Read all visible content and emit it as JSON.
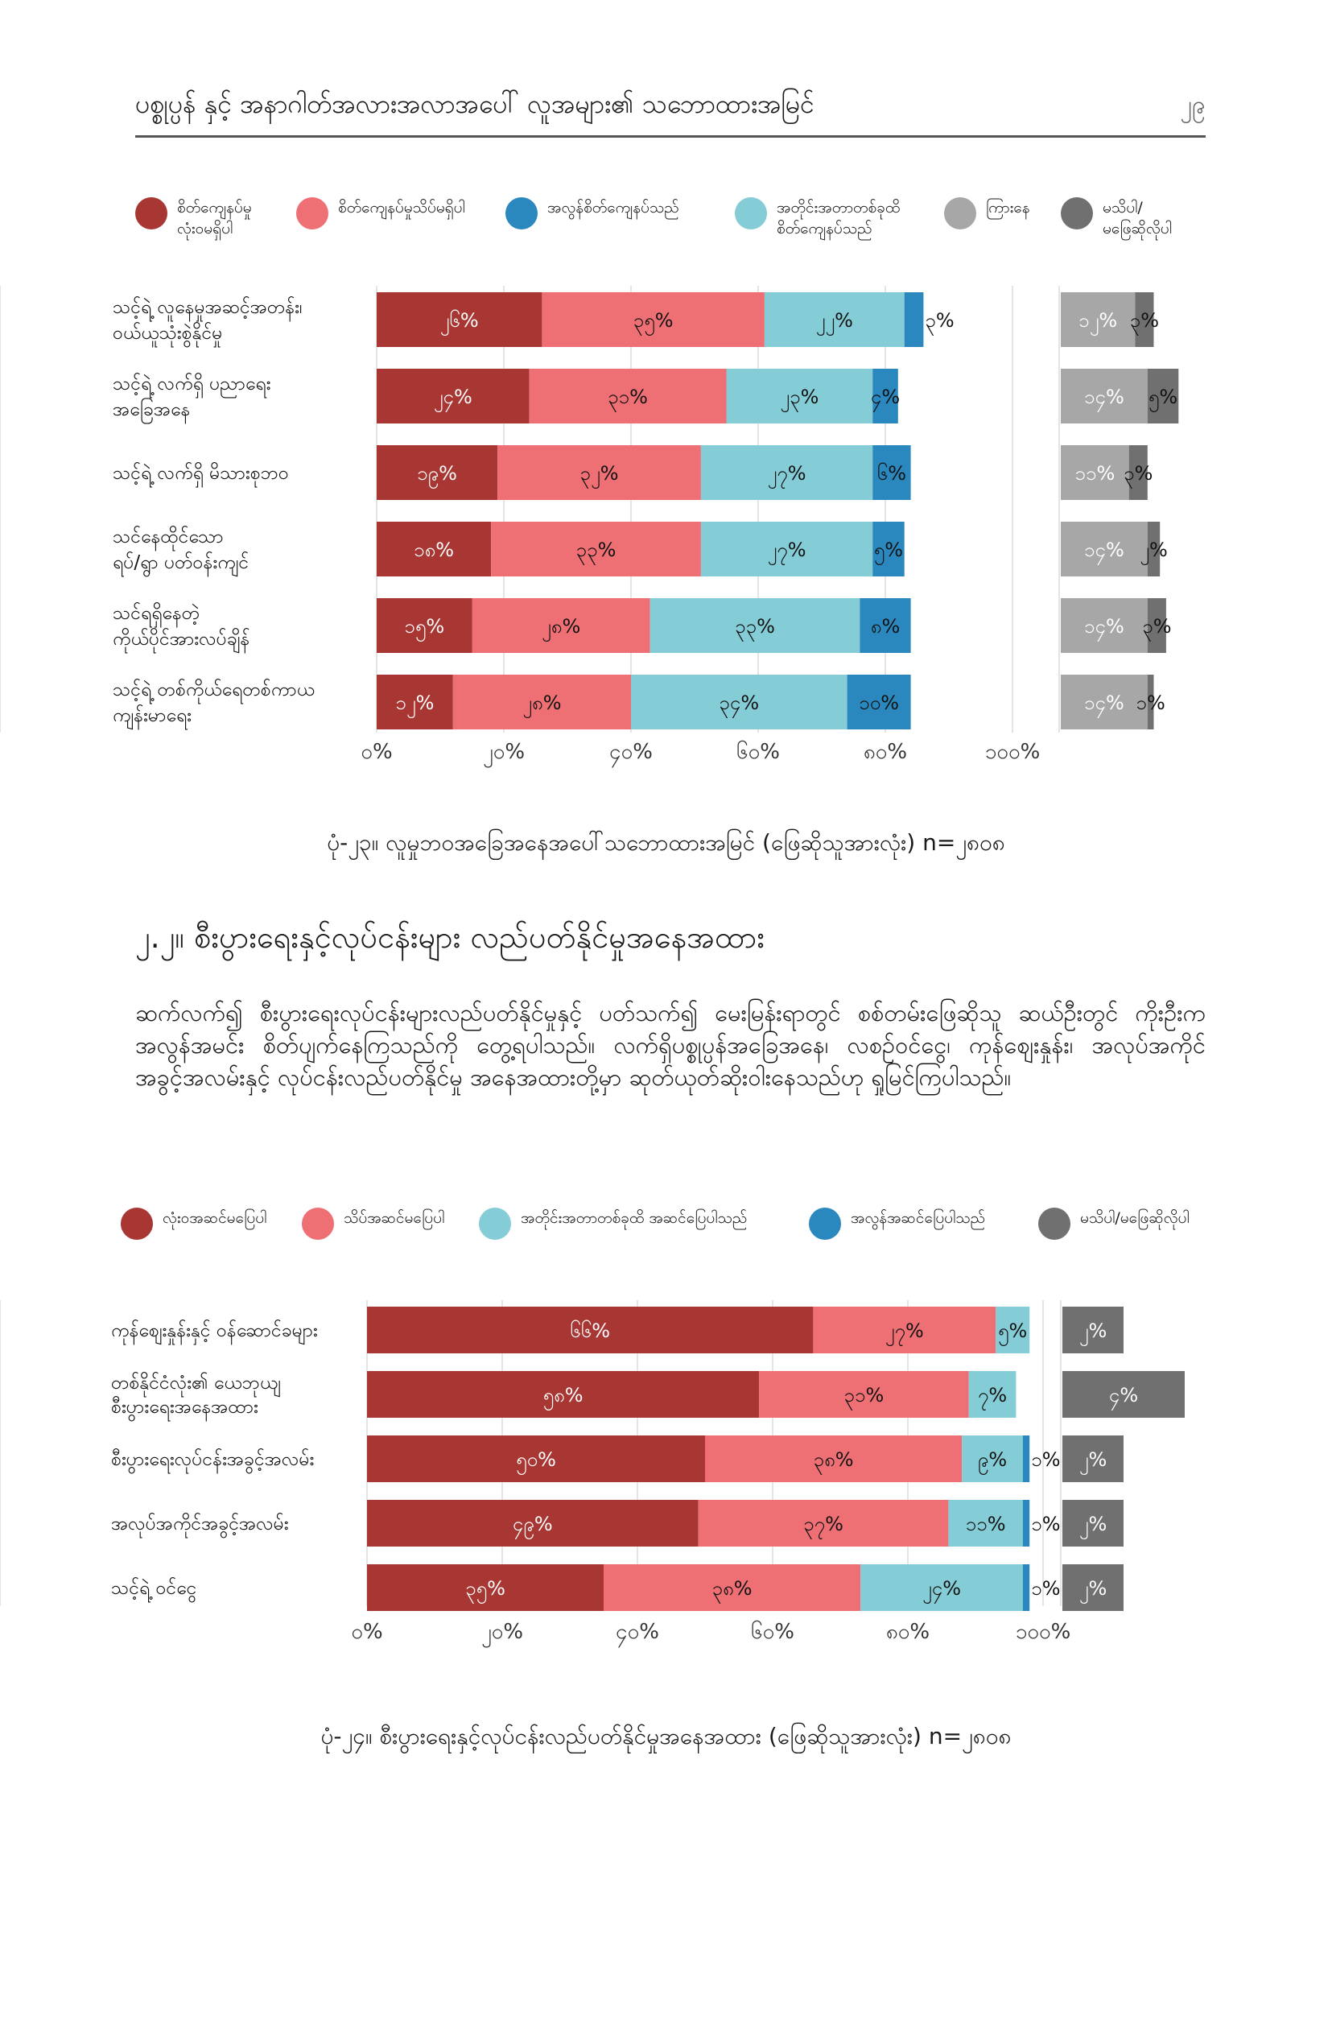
{
  "header": {
    "title": "ပစ္စုပ္ပန် နှင့် အနာဂါတ်အလားအလာအပေါ် လူအများ၏ သဘောထားအမြင်",
    "page_number": "၂၉"
  },
  "legend1": [
    {
      "label": "စိတ်ကျေနပ်မှု\nလုံးဝမရှိပါ",
      "color": "#a83632"
    },
    {
      "label": "စိတ်ကျေနပ်မှုသိပ်မရှိပါ",
      "color": "#ee7074"
    },
    {
      "label": "အလွန်စိတ်ကျေနပ်သည်",
      "color": "#2a88be"
    },
    {
      "label": "အတိုင်းအတာတစ်ခုထိ\nစိတ်ကျေနပ်သည်",
      "color": "#84ccd6"
    },
    {
      "label": "ကြားနေ",
      "color": "#a7a7a7"
    },
    {
      "label": "မသိပါ/\nမဖြေဆိုလိုပါ",
      "color": "#707070"
    }
  ],
  "legend2": [
    {
      "label": "လုံးဝအဆင်မပြေပါ",
      "color": "#a83632"
    },
    {
      "label": "သိပ်အဆင်မပြေပါ",
      "color": "#ee7074"
    },
    {
      "label": "အတိုင်းအတာတစ်ခုထိ အဆင်ပြေပါသည်",
      "color": "#84ccd6"
    },
    {
      "label": "အလွန်အဆင်ပြေပါသည်",
      "color": "#2a88be"
    },
    {
      "label": "မသိပါ/မဖြေဆိုလိုပါ",
      "color": "#707070"
    }
  ],
  "chart_data": [
    {
      "type": "bar",
      "orientation": "horizontal",
      "stacked": true,
      "categories": [
        "သင့်ရဲ့ လူနေမှုအဆင့်အတန်း၊\nဝယ်ယူသုံးစွဲနိုင်မှု",
        "သင့်ရဲ့ လက်ရှိ ပညာရေး\nအခြေအနေ",
        "သင့်ရဲ့ လက်ရှိ မိသားစုဘဝ",
        "သင်နေထိုင်သော\nရပ်/ရွာ ပတ်ဝန်းကျင်",
        "သင်ရရှိနေတဲ့\nကိုယ်ပိုင်အားလပ်ချိန်",
        "သင့်ရဲ့ တစ်ကိုယ်ရေတစ်ကာယ\nကျန်းမာရေး"
      ],
      "series": [
        {
          "color": "#a83632",
          "values": [
            26,
            24,
            19,
            18,
            15,
            12
          ],
          "labels": [
            "၂၆%",
            "၂၄%",
            "၁၉%",
            "၁၈%",
            "၁၅%",
            "၁၂%"
          ]
        },
        {
          "color": "#ee7074",
          "values": [
            35,
            31,
            32,
            33,
            28,
            28
          ],
          "labels": [
            "၃၅%",
            "၃၁%",
            "၃၂%",
            "၃၃%",
            "၂၈%",
            "၂၈%"
          ]
        },
        {
          "color": "#84ccd6",
          "values": [
            22,
            23,
            27,
            27,
            33,
            34
          ],
          "labels": [
            "၂၂%",
            "၂၃%",
            "၂၇%",
            "၂၇%",
            "၃၃%",
            "၃၄%"
          ]
        },
        {
          "color": "#2a88be",
          "values": [
            3,
            4,
            6,
            5,
            8,
            10
          ],
          "labels": [
            "၃%",
            "၄%",
            "၆%",
            "၅%",
            "၈%",
            "၁၀%"
          ]
        },
        {
          "color": "#a7a7a7",
          "values": [
            12,
            14,
            11,
            14,
            14,
            14
          ],
          "labels": [
            "၁၂%",
            "၁၄%",
            "၁၁%",
            "၁၄%",
            "၁၄%",
            "၁၄%"
          ],
          "panel": "side"
        },
        {
          "color": "#707070",
          "values": [
            3,
            5,
            3,
            2,
            3,
            1
          ],
          "labels": [
            "၃%",
            "၅%",
            "၃%",
            "၂%",
            "၃%",
            "၁%"
          ],
          "panel": "side"
        }
      ],
      "xlim": [
        0,
        100
      ],
      "tick_labels": [
        "၀%",
        "၂၀%",
        "၄၀%",
        "၆၀%",
        "၈၀%",
        "၁၀၀%"
      ],
      "grid": true
    },
    {
      "type": "bar",
      "orientation": "horizontal",
      "stacked": true,
      "categories": [
        "ကုန်စျေးနှုန်းနှင့် ဝန်ဆောင်ခများ",
        "တစ်နိုင်ငံလုံး၏ ယေဘုယျ\nစီးပွားရေးအနေအထား",
        "စီးပွားရေးလုပ်ငန်းအခွင့်အလမ်း",
        "အလုပ်အကိုင်အခွင့်အလမ်း",
        "သင့်ရဲ့ ဝင်ငွေ"
      ],
      "series": [
        {
          "color": "#a83632",
          "values": [
            66,
            58,
            50,
            49,
            35
          ],
          "labels": [
            "၆၆%",
            "၅၈%",
            "၅၀%",
            "၄၉%",
            "၃၅%"
          ]
        },
        {
          "color": "#ee7074",
          "values": [
            27,
            31,
            38,
            37,
            38
          ],
          "labels": [
            "၂၇%",
            "၃၁%",
            "၃၈%",
            "၃၇%",
            "၃၈%"
          ]
        },
        {
          "color": "#84ccd6",
          "values": [
            5,
            7,
            9,
            11,
            24
          ],
          "labels": [
            "၅%",
            "၇%",
            "၉%",
            "၁၁%",
            "၂၄%"
          ]
        },
        {
          "color": "#2a88be",
          "values": [
            0,
            0,
            1,
            1,
            1
          ],
          "labels": [
            "",
            "",
            "၁%",
            "၁%",
            "၁%"
          ]
        },
        {
          "color": "#707070",
          "values": [
            2,
            4,
            2,
            2,
            2
          ],
          "labels": [
            "၂%",
            "၄%",
            "၂%",
            "၂%",
            "၂%"
          ],
          "panel": "side"
        }
      ],
      "xlim": [
        0,
        100
      ],
      "tick_labels": [
        "၀%",
        "၂၀%",
        "၄၀%",
        "၆၀%",
        "၈၀%",
        "၁၀၀%"
      ],
      "grid": true
    }
  ],
  "caption1": "ပုံ-၂၃။ လူမှုဘဝအခြေအနေအပေါ်သဘောထားအမြင် (ဖြေဆိုသူအားလုံး) n=၂၈၀၈",
  "section": {
    "heading": "၂.၂။ စီးပွားရေးနှင့်လုပ်ငန်းများ လည်ပတ်နိုင်မှုအနေအထား",
    "body": "ဆက်လက်၍ စီးပွားရေးလုပ်ငန်းများလည်ပတ်နိုင်မှုနှင့် ပတ်သက်၍ မေးမြန်းရာတွင် စစ်တမ်းဖြေဆိုသူ ဆယ်ဦးတွင် ကိုးဦးက အလွန်အမင်း စိတ်ပျက်နေကြသည်ကို တွေ့ရပါသည်။ လက်ရှိပစ္စုပ္ပန်အခြေအနေ၊ လစဥ်ဝင်ငွေ၊ ကုန်စျေးနှုန်း၊ အလုပ်အကိုင် အခွင့်အလမ်းနှင့် လုပ်ငန်းလည်ပတ်နိုင်မှု အနေအထားတို့မှာ ဆုတ်ယုတ်ဆိုးဝါးနေသည်ဟု ရှုမြင်ကြပါသည်။"
  },
  "caption2": "ပုံ-၂၄။ စီးပွားရေးနှင့်လုပ်ငန်းလည်ပတ်နိုင်မှုအနေအထား (ဖြေဆိုသူအားလုံး) n=၂၈၀၈"
}
